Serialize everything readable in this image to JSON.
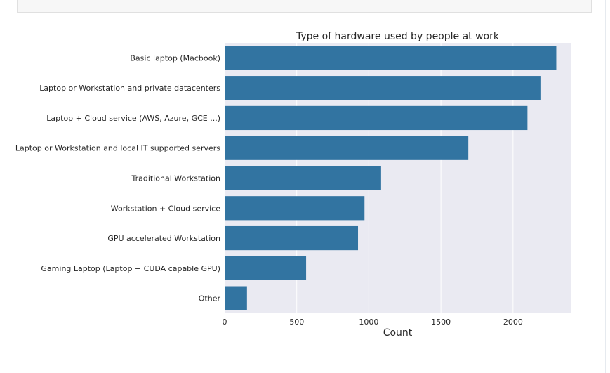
{
  "chart_data": {
    "type": "bar",
    "orientation": "horizontal",
    "title": "Type of hardware used by people at work",
    "xlabel": "Count",
    "ylabel": "",
    "categories": [
      "Basic laptop (Macbook)",
      "Laptop or Workstation and private datacenters",
      "Laptop + Cloud service (AWS, Azure, GCE ...)",
      "Laptop or Workstation and local IT supported servers",
      "Traditional Workstation",
      "Workstation + Cloud service",
      "GPU accelerated Workstation",
      "Gaming Laptop (Laptop + CUDA capable GPU)",
      "Other"
    ],
    "values": [
      2300,
      2190,
      2100,
      1690,
      1085,
      970,
      925,
      565,
      155
    ],
    "xlim": [
      0,
      2400
    ],
    "xticks": [
      0,
      500,
      1000,
      1500,
      2000
    ],
    "grid": true,
    "bar_color": "#3274a1",
    "plot_background": "#eaeaf2",
    "grid_color": "#ffffff"
  }
}
